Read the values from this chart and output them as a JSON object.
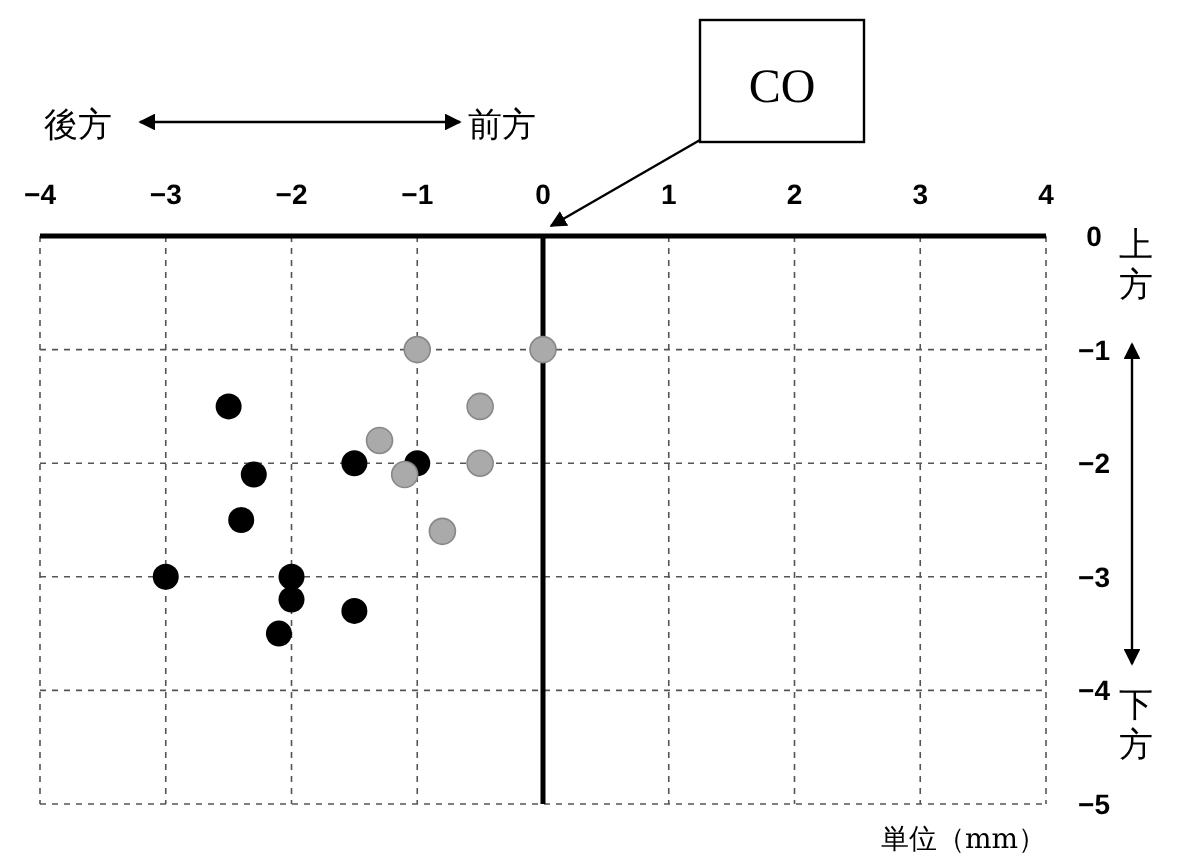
{
  "chart_data": {
    "type": "scatter",
    "xlim": [
      -4,
      4
    ],
    "xticks": [
      -4,
      -3,
      -2,
      -1,
      0,
      1,
      2,
      3,
      4
    ],
    "ylim": [
      -5,
      0
    ],
    "yticks": [
      0,
      -1,
      -2,
      -3,
      -4,
      -5
    ],
    "grid": true,
    "marker": "circle",
    "series": [
      {
        "color": "#000000",
        "x": [
          -2.5,
          -2.3,
          -2.4,
          -3,
          -2,
          -2,
          -2.1,
          -1.5,
          -1.5,
          -1
        ],
        "values": [
          -1.5,
          -2.1,
          -2.5,
          -3,
          -3,
          -3.2,
          -3.5,
          -3.3,
          -2,
          -2
        ]
      },
      {
        "color": "#aaaaaa",
        "x": [
          -1,
          0,
          -0.5,
          -1.3,
          -0.5,
          -1.1,
          -0.8
        ],
        "values": [
          -1,
          -1,
          -1.5,
          -1.8,
          -2,
          -2.1,
          -2.6
        ]
      }
    ],
    "annotations": [
      "CO",
      "後方",
      "前方",
      "上方",
      "下方",
      "単位（mm）"
    ]
  }
}
